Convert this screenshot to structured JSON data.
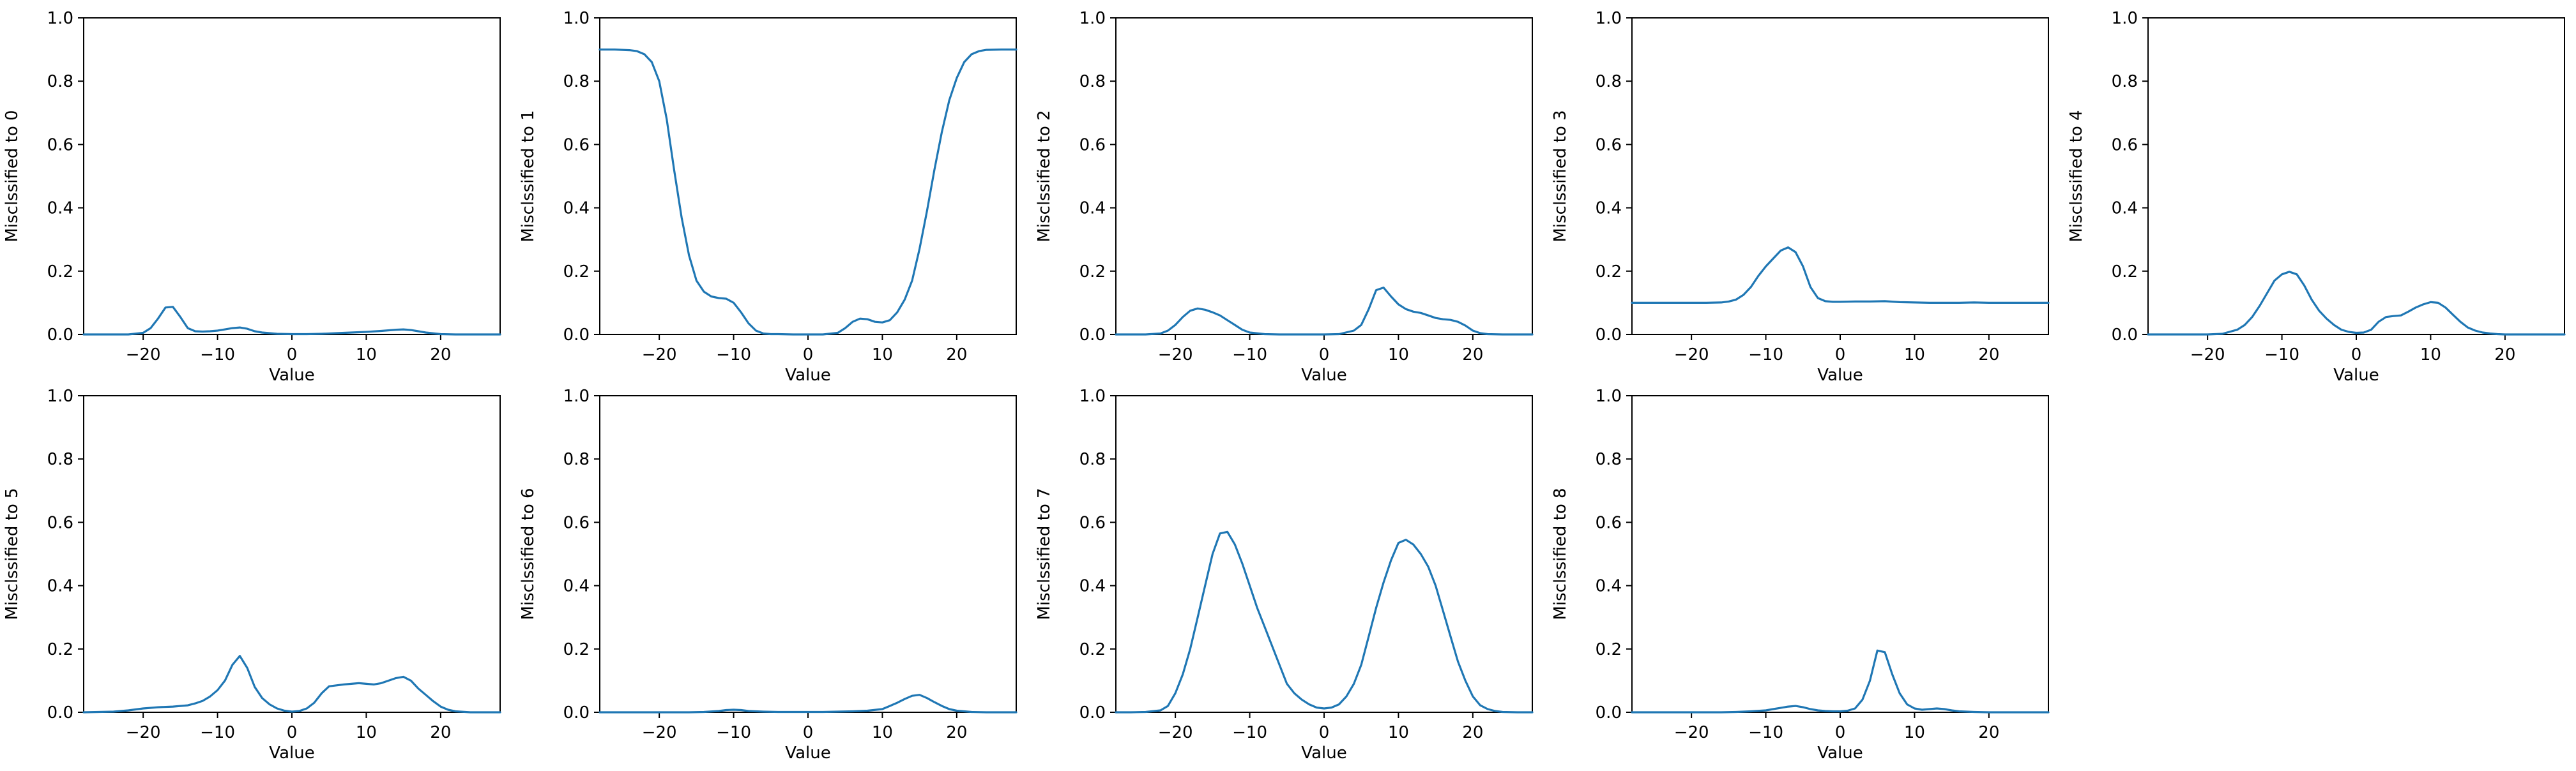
{
  "figure": {
    "line_color": "#1f77b4",
    "shared_axes": {
      "xlabel": "Value",
      "xlim": [
        -28,
        28
      ],
      "ylim": [
        0,
        1
      ],
      "xticks": [
        -20,
        -10,
        0,
        10,
        20
      ],
      "yticks": [
        0.0,
        0.2,
        0.4,
        0.6,
        0.8,
        1.0
      ],
      "grid": false,
      "legend": "none"
    }
  },
  "chart_data": [
    {
      "type": "line",
      "xlabel": "Value",
      "ylabel": "Misclssified to 0",
      "xlim": [
        -28,
        28
      ],
      "ylim": [
        0,
        1
      ],
      "x": [
        -28,
        -26,
        -24,
        -22,
        -20,
        -19,
        -18,
        -17,
        -16,
        -15,
        -14,
        -13,
        -12,
        -11,
        -10,
        -9,
        -8,
        -7,
        -6,
        -5,
        -4,
        -2,
        0,
        2,
        4,
        6,
        8,
        10,
        12,
        14,
        15,
        16,
        17,
        18,
        20,
        22,
        24,
        26,
        28
      ],
      "y": [
        0,
        0,
        0,
        0,
        0.005,
        0.02,
        0.05,
        0.085,
        0.087,
        0.055,
        0.02,
        0.01,
        0.009,
        0.01,
        0.012,
        0.016,
        0.02,
        0.022,
        0.018,
        0.01,
        0.006,
        0.002,
        0.001,
        0.001,
        0.002,
        0.004,
        0.006,
        0.008,
        0.011,
        0.015,
        0.016,
        0.014,
        0.01,
        0.006,
        0.001,
        0,
        0,
        0,
        0
      ]
    },
    {
      "type": "line",
      "xlabel": "Value",
      "ylabel": "Misclssified to 1",
      "xlim": [
        -28,
        28
      ],
      "ylim": [
        0,
        1
      ],
      "x": [
        -28,
        -26,
        -24,
        -23,
        -22,
        -21,
        -20,
        -19,
        -18,
        -17,
        -16,
        -15,
        -14,
        -13,
        -12,
        -11,
        -10,
        -9,
        -8,
        -7,
        -6,
        -5,
        -4,
        -2,
        0,
        2,
        4,
        5,
        6,
        7,
        8,
        9,
        10,
        11,
        12,
        13,
        14,
        15,
        16,
        17,
        18,
        19,
        20,
        21,
        22,
        23,
        24,
        26,
        28
      ],
      "y": [
        0.9,
        0.9,
        0.898,
        0.895,
        0.885,
        0.86,
        0.8,
        0.68,
        0.52,
        0.37,
        0.25,
        0.17,
        0.135,
        0.12,
        0.115,
        0.113,
        0.1,
        0.07,
        0.035,
        0.012,
        0.003,
        0.001,
        0.001,
        0,
        0,
        0,
        0.005,
        0.02,
        0.04,
        0.05,
        0.048,
        0.04,
        0.038,
        0.045,
        0.07,
        0.11,
        0.17,
        0.27,
        0.39,
        0.52,
        0.64,
        0.74,
        0.81,
        0.86,
        0.885,
        0.895,
        0.899,
        0.9,
        0.9
      ]
    },
    {
      "type": "line",
      "xlabel": "Value",
      "ylabel": "Misclssified to 2",
      "xlim": [
        -28,
        28
      ],
      "ylim": [
        0,
        1
      ],
      "x": [
        -28,
        -26,
        -24,
        -22,
        -21,
        -20,
        -19,
        -18,
        -17,
        -16,
        -15,
        -14,
        -13,
        -12,
        -11,
        -10,
        -8,
        -6,
        -4,
        -2,
        0,
        2,
        4,
        5,
        6,
        7,
        8,
        9,
        10,
        11,
        12,
        13,
        14,
        15,
        16,
        17,
        18,
        19,
        20,
        21,
        22,
        24,
        26,
        28
      ],
      "y": [
        0,
        0,
        0,
        0.003,
        0.012,
        0.03,
        0.055,
        0.075,
        0.082,
        0.078,
        0.07,
        0.06,
        0.045,
        0.03,
        0.015,
        0.006,
        0.001,
        0,
        0,
        0,
        0,
        0.001,
        0.012,
        0.03,
        0.08,
        0.14,
        0.148,
        0.12,
        0.095,
        0.08,
        0.072,
        0.068,
        0.06,
        0.052,
        0.048,
        0.046,
        0.04,
        0.028,
        0.012,
        0.004,
        0.001,
        0,
        0,
        0
      ]
    },
    {
      "type": "line",
      "xlabel": "Value",
      "ylabel": "Misclssified to 3",
      "xlim": [
        -28,
        28
      ],
      "ylim": [
        0,
        1
      ],
      "x": [
        -28,
        -26,
        -24,
        -22,
        -20,
        -18,
        -16,
        -15,
        -14,
        -13,
        -12,
        -11,
        -10,
        -9,
        -8,
        -7,
        -6,
        -5,
        -4,
        -3,
        -2,
        -1,
        0,
        2,
        4,
        6,
        8,
        10,
        12,
        14,
        16,
        18,
        20,
        22,
        24,
        26,
        28
      ],
      "y": [
        0.1,
        0.1,
        0.1,
        0.1,
        0.1,
        0.1,
        0.101,
        0.104,
        0.11,
        0.125,
        0.15,
        0.185,
        0.215,
        0.24,
        0.265,
        0.275,
        0.26,
        0.215,
        0.15,
        0.115,
        0.105,
        0.103,
        0.103,
        0.104,
        0.104,
        0.105,
        0.102,
        0.101,
        0.1,
        0.1,
        0.1,
        0.101,
        0.1,
        0.1,
        0.1,
        0.1,
        0.1
      ]
    },
    {
      "type": "line",
      "xlabel": "Value",
      "ylabel": "Misclssified to 4",
      "xlim": [
        -28,
        28
      ],
      "ylim": [
        0,
        1
      ],
      "x": [
        -28,
        -26,
        -24,
        -22,
        -20,
        -18,
        -16,
        -15,
        -14,
        -13,
        -12,
        -11,
        -10,
        -9,
        -8,
        -7,
        -6,
        -5,
        -4,
        -3,
        -2,
        -1,
        0,
        1,
        2,
        3,
        4,
        5,
        6,
        7,
        8,
        9,
        10,
        11,
        12,
        13,
        14,
        15,
        16,
        17,
        18,
        19,
        20,
        22,
        24,
        26,
        28
      ],
      "y": [
        0,
        0,
        0,
        0,
        0,
        0.002,
        0.015,
        0.03,
        0.055,
        0.09,
        0.13,
        0.17,
        0.19,
        0.198,
        0.19,
        0.155,
        0.11,
        0.075,
        0.05,
        0.03,
        0.015,
        0.008,
        0.005,
        0.006,
        0.015,
        0.04,
        0.055,
        0.058,
        0.06,
        0.072,
        0.085,
        0.095,
        0.102,
        0.1,
        0.085,
        0.062,
        0.04,
        0.022,
        0.012,
        0.006,
        0.003,
        0.001,
        0,
        0,
        0,
        0,
        0
      ]
    },
    {
      "type": "line",
      "xlabel": "Value",
      "ylabel": "Misclssified to 5",
      "xlim": [
        -28,
        28
      ],
      "ylim": [
        0,
        1
      ],
      "x": [
        -28,
        -26,
        -24,
        -22,
        -20,
        -18,
        -16,
        -14,
        -13,
        -12,
        -11,
        -10,
        -9,
        -8,
        -7,
        -6,
        -5,
        -4,
        -3,
        -2,
        -1,
        0,
        1,
        2,
        3,
        4,
        5,
        6,
        7,
        8,
        9,
        10,
        11,
        12,
        13,
        14,
        15,
        16,
        17,
        18,
        19,
        20,
        21,
        22,
        24,
        26,
        28
      ],
      "y": [
        0,
        0.001,
        0.002,
        0.006,
        0.012,
        0.016,
        0.018,
        0.022,
        0.028,
        0.036,
        0.05,
        0.07,
        0.1,
        0.15,
        0.178,
        0.14,
        0.08,
        0.045,
        0.025,
        0.012,
        0.005,
        0.002,
        0.004,
        0.012,
        0.03,
        0.06,
        0.082,
        0.085,
        0.088,
        0.09,
        0.092,
        0.09,
        0.088,
        0.092,
        0.1,
        0.108,
        0.112,
        0.1,
        0.075,
        0.055,
        0.035,
        0.018,
        0.008,
        0.003,
        0,
        0,
        0
      ]
    },
    {
      "type": "line",
      "xlabel": "Value",
      "ylabel": "Misclssified to 6",
      "xlim": [
        -28,
        28
      ],
      "ylim": [
        0,
        1
      ],
      "x": [
        -28,
        -26,
        -24,
        -22,
        -20,
        -18,
        -16,
        -14,
        -12,
        -11,
        -10,
        -9,
        -8,
        -6,
        -4,
        -2,
        0,
        2,
        4,
        6,
        8,
        10,
        11,
        12,
        13,
        14,
        15,
        16,
        17,
        18,
        19,
        20,
        22,
        24,
        26,
        28
      ],
      "y": [
        0,
        0,
        0,
        0,
        0,
        0,
        0,
        0.001,
        0.004,
        0.007,
        0.008,
        0.007,
        0.004,
        0.002,
        0.001,
        0.001,
        0.001,
        0.001,
        0.002,
        0.003,
        0.005,
        0.01,
        0.02,
        0.03,
        0.042,
        0.052,
        0.055,
        0.045,
        0.032,
        0.02,
        0.01,
        0.005,
        0.001,
        0,
        0,
        0
      ]
    },
    {
      "type": "line",
      "xlabel": "Value",
      "ylabel": "Misclssified to 7",
      "xlim": [
        -28,
        28
      ],
      "ylim": [
        0,
        1
      ],
      "x": [
        -28,
        -26,
        -24,
        -22,
        -21,
        -20,
        -19,
        -18,
        -17,
        -16,
        -15,
        -14,
        -13,
        -12,
        -11,
        -10,
        -9,
        -8,
        -7,
        -6,
        -5,
        -4,
        -3,
        -2,
        -1,
        0,
        1,
        2,
        3,
        4,
        5,
        6,
        7,
        8,
        9,
        10,
        11,
        12,
        13,
        14,
        15,
        16,
        17,
        18,
        19,
        20,
        21,
        22,
        23,
        24,
        26,
        28
      ],
      "y": [
        0,
        0,
        0.001,
        0.006,
        0.02,
        0.06,
        0.12,
        0.2,
        0.3,
        0.4,
        0.5,
        0.565,
        0.57,
        0.53,
        0.47,
        0.4,
        0.33,
        0.27,
        0.21,
        0.15,
        0.09,
        0.06,
        0.04,
        0.025,
        0.015,
        0.012,
        0.015,
        0.025,
        0.05,
        0.09,
        0.15,
        0.24,
        0.33,
        0.41,
        0.48,
        0.535,
        0.545,
        0.53,
        0.5,
        0.46,
        0.4,
        0.32,
        0.24,
        0.16,
        0.1,
        0.05,
        0.022,
        0.01,
        0.004,
        0.001,
        0,
        0
      ]
    },
    {
      "type": "line",
      "xlabel": "Value",
      "ylabel": "Misclssified to 8",
      "xlim": [
        -28,
        28
      ],
      "ylim": [
        0,
        1
      ],
      "x": [
        -28,
        -26,
        -24,
        -22,
        -20,
        -18,
        -16,
        -14,
        -12,
        -10,
        -9,
        -8,
        -7,
        -6,
        -5,
        -4,
        -3,
        -2,
        -1,
        0,
        1,
        2,
        3,
        4,
        5,
        6,
        7,
        8,
        9,
        10,
        11,
        12,
        13,
        14,
        15,
        16,
        18,
        20,
        22,
        24,
        26,
        28
      ],
      "y": [
        0,
        0,
        0,
        0,
        0,
        0,
        0,
        0.001,
        0.003,
        0.006,
        0.01,
        0.014,
        0.018,
        0.02,
        0.016,
        0.01,
        0.006,
        0.004,
        0.003,
        0.003,
        0.005,
        0.012,
        0.04,
        0.1,
        0.195,
        0.19,
        0.12,
        0.06,
        0.025,
        0.012,
        0.008,
        0.01,
        0.012,
        0.01,
        0.006,
        0.003,
        0.001,
        0,
        0,
        0,
        0,
        0
      ]
    }
  ]
}
